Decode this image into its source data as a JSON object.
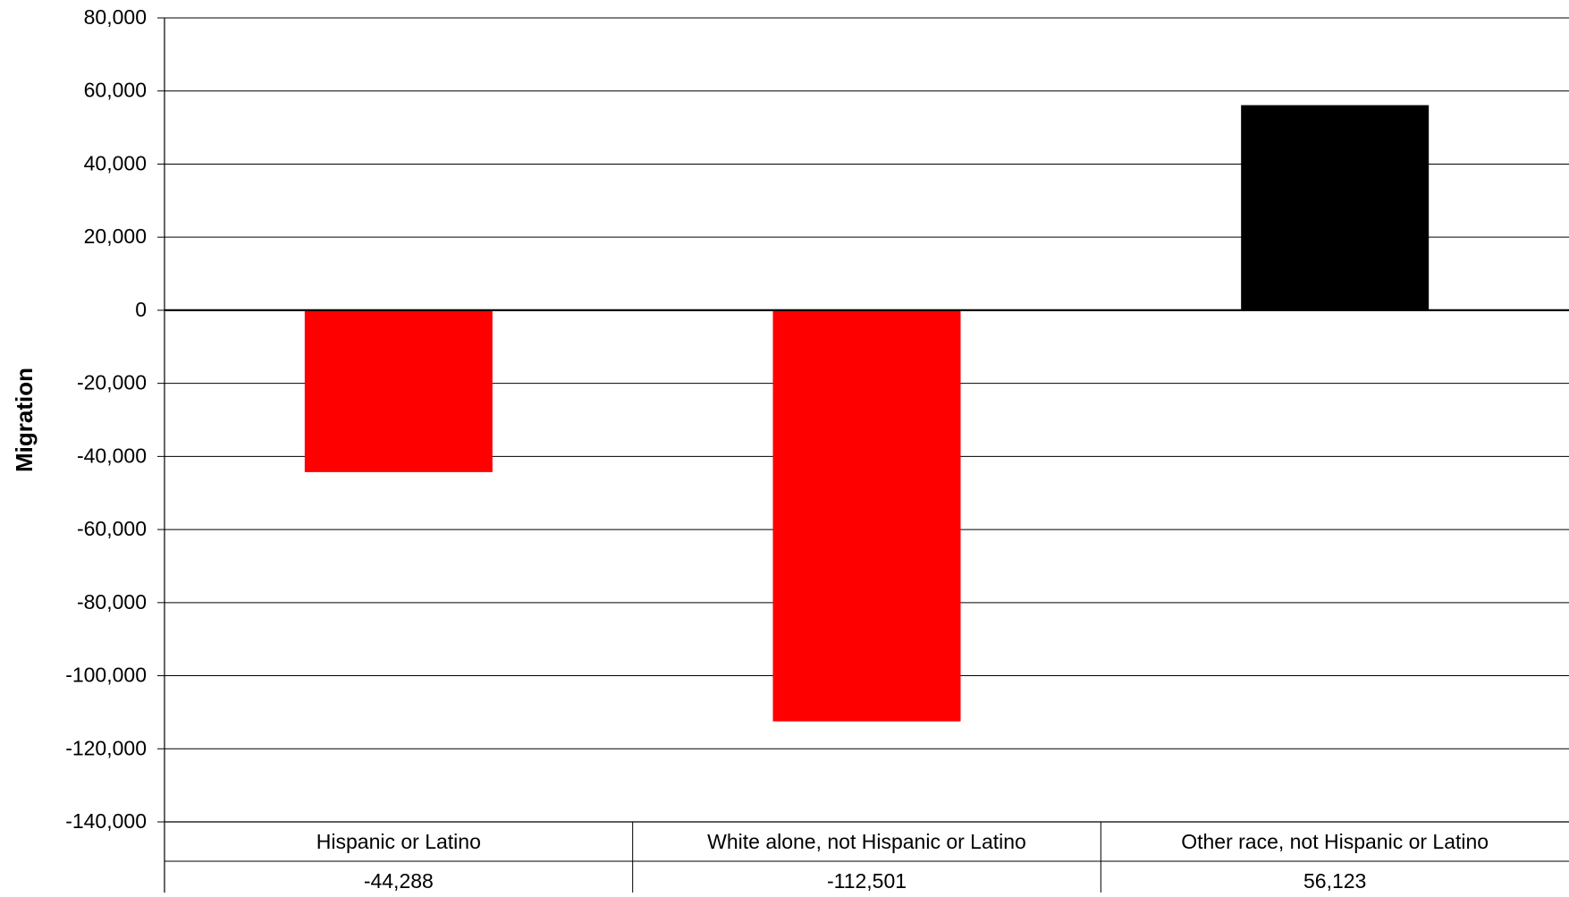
{
  "chart_data": {
    "type": "bar",
    "title": "",
    "xlabel": "",
    "ylabel": "Migration",
    "ylim": [
      -140000,
      80000
    ],
    "ytick_step": 20000,
    "ytick_labels": [
      "80,000",
      "60,000",
      "40,000",
      "20,000",
      "0",
      "-20,000",
      "-40,000",
      "-60,000",
      "-80,000",
      "-100,000",
      "-120,000",
      "-140,000"
    ],
    "categories": [
      "Hispanic or Latino",
      "White alone, not Hispanic or Latino",
      "Other race, not Hispanic or Latino"
    ],
    "values": [
      -44288,
      -112501,
      56123
    ],
    "value_labels": [
      "-44,288",
      "-112,501",
      "56,123"
    ],
    "bar_colors": [
      "#FF0000",
      "#FF0000",
      "#000000"
    ],
    "grid": true,
    "legend": "none",
    "data_table": true
  }
}
